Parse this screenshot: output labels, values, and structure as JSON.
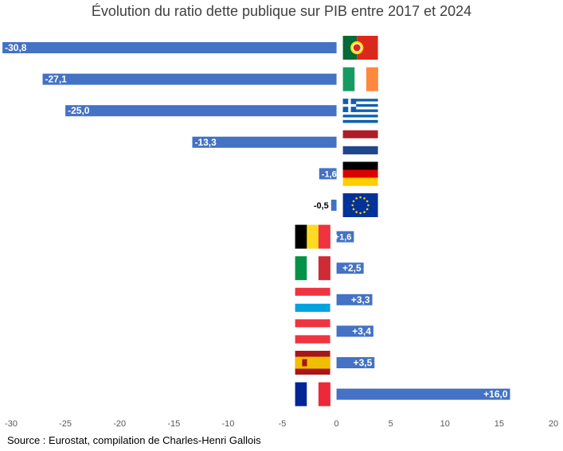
{
  "chart_data": {
    "type": "bar",
    "orientation": "horizontal",
    "title": "Évolution du ratio dette publique sur PIB entre 2017 et 2024",
    "xlabel": "",
    "ylabel": "",
    "xlim": [
      -30,
      20
    ],
    "x_ticks": [
      -30,
      -25,
      -20,
      -15,
      -10,
      -5,
      0,
      5,
      10,
      15,
      20
    ],
    "grid": false,
    "legend": "none",
    "bar_color": "#4472C4",
    "categories": [
      "Portugal",
      "Ireland",
      "Greece",
      "Netherlands",
      "Germany",
      "European Union",
      "Belgium",
      "Italy",
      "Luxembourg",
      "Austria",
      "Spain",
      "France"
    ],
    "category_icons": [
      "portugal-flag",
      "ireland-flag",
      "greece-flag",
      "netherlands-flag",
      "germany-flag",
      "eu-flag",
      "belgium-flag",
      "italy-flag",
      "luxembourg-flag",
      "austria-flag",
      "spain-flag",
      "france-flag"
    ],
    "values": [
      -30.8,
      -27.1,
      -25.0,
      -13.3,
      -1.6,
      -0.5,
      1.6,
      2.5,
      3.3,
      3.4,
      3.5,
      16.0
    ],
    "data_labels": [
      "-30,8",
      "-27,1",
      "-25,0",
      "-13,3",
      "-1,6",
      "-0,5",
      "+1,6",
      "+2,5",
      "+3,3",
      "+3,4",
      "+3,5",
      "+16,0"
    ],
    "source": "Source : Eurostat, compilation de Charles-Henri Gallois"
  }
}
